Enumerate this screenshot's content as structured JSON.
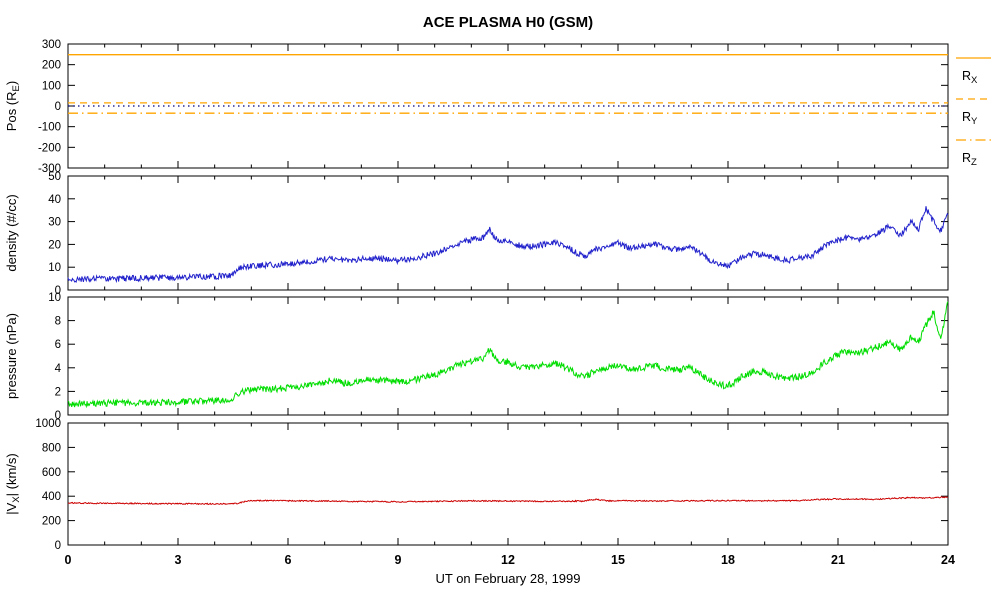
{
  "chart_data": {
    "type": "line",
    "title": "ACE PLASMA H0 (GSM)",
    "xlabel": "UT on February 28, 1999",
    "x_range": [
      0,
      24
    ],
    "x_ticks": [
      0,
      3,
      6,
      9,
      12,
      15,
      18,
      21,
      24
    ],
    "grid": false,
    "legend_position": "right-of-top-panel",
    "panels": [
      {
        "id": "position",
        "ylabel_parts": [
          {
            "t": "Pos (R"
          },
          {
            "t": "E",
            "sub": true
          },
          {
            "t": ")"
          }
        ],
        "ylim": [
          -300,
          300
        ],
        "yticks": [
          -300,
          -200,
          -100,
          0,
          100,
          200,
          300
        ],
        "series": [
          {
            "name": "R_X",
            "color": "#FFA500",
            "style": "solid",
            "width": 1.3,
            "noise": 0,
            "x": [
              0,
              24
            ],
            "y": [
              248,
              248
            ]
          },
          {
            "name": "R_Y",
            "color": "#FFA500",
            "style": "dash",
            "width": 1.3,
            "noise": 0,
            "x": [
              0,
              24
            ],
            "y": [
              15,
              15
            ]
          },
          {
            "name": "R_Z",
            "color": "#FFA500",
            "style": "dashdot",
            "width": 1.3,
            "noise": 0,
            "x": [
              0,
              24
            ],
            "y": [
              -35,
              -35
            ]
          },
          {
            "name": "zero-reference",
            "color": "#000080",
            "style": "dot",
            "width": 1.2,
            "noise": 0,
            "x": [
              0,
              24
            ],
            "y": [
              0,
              0
            ]
          }
        ],
        "legend": [
          {
            "main": "R",
            "sub": "X",
            "style": "solid"
          },
          {
            "main": "R",
            "sub": "Y",
            "style": "dash"
          },
          {
            "main": "R",
            "sub": "Z",
            "style": "dashdot"
          }
        ]
      },
      {
        "id": "density",
        "ylabel_parts": [
          {
            "t": "density (#/cc)"
          }
        ],
        "ylim": [
          0,
          50
        ],
        "yticks": [
          0,
          10,
          20,
          30,
          40,
          50
        ],
        "series": [
          {
            "name": "density",
            "color": "#2222CC",
            "style": "solid",
            "width": 1,
            "noise": 1.3,
            "x": [
              0,
              0.5,
              1,
              1.5,
              2,
              2.5,
              3,
              3.5,
              4,
              4.4,
              4.7,
              4.9,
              5.2,
              5.6,
              6,
              6.4,
              6.8,
              7,
              7.2,
              7.5,
              7.8,
              8,
              8.3,
              8.6,
              9,
              9.3,
              9.6,
              10,
              10.3,
              10.6,
              10.9,
              11.1,
              11.35,
              11.5,
              11.7,
              12,
              12.2,
              12.5,
              12.8,
              13,
              13.3,
              13.6,
              13.9,
              14.1,
              14.4,
              14.7,
              15,
              15.3,
              15.6,
              16,
              16.3,
              16.6,
              17,
              17.3,
              17.6,
              17.9,
              18.1,
              18.4,
              18.7,
              19,
              19.3,
              19.6,
              20,
              20.3,
              20.6,
              20.9,
              21.2,
              21.5,
              21.8,
              22.1,
              22.4,
              22.7,
              23,
              23.2,
              23.4,
              23.6,
              23.8,
              24
            ],
            "y": [
              4.5,
              4.8,
              5,
              5,
              5.2,
              5.3,
              5.5,
              5.8,
              6,
              6.2,
              9.5,
              10.5,
              10.8,
              11,
              11.5,
              12,
              13,
              13.5,
              14,
              12.8,
              13.2,
              13.5,
              14,
              13.8,
              13,
              13.5,
              14.5,
              16,
              18,
              20,
              21.5,
              22.5,
              23,
              26.5,
              22,
              21.5,
              20,
              19,
              19.5,
              20,
              21,
              19,
              16,
              15,
              18,
              19,
              20.5,
              18.5,
              19,
              20,
              18.5,
              18,
              19,
              15.5,
              12,
              10.5,
              11,
              14.5,
              16,
              15.5,
              14,
              13,
              14,
              15,
              19,
              21,
              23,
              22,
              23.5,
              25,
              28,
              24,
              30,
              27,
              36,
              30,
              26,
              33
            ]
          }
        ]
      },
      {
        "id": "pressure",
        "ylabel_parts": [
          {
            "t": "pressure (nPa)"
          }
        ],
        "ylim": [
          0,
          10
        ],
        "yticks": [
          0,
          2,
          4,
          6,
          8,
          10
        ],
        "series": [
          {
            "name": "pressure",
            "color": "#00DD00",
            "style": "solid",
            "width": 1,
            "noise": 0.28,
            "x": [
              0,
              0.5,
              1,
              1.5,
              2,
              2.5,
              3,
              3.5,
              4,
              4.4,
              4.7,
              4.9,
              5.2,
              5.6,
              6,
              6.4,
              6.8,
              7,
              7.2,
              7.5,
              7.8,
              8,
              8.3,
              8.6,
              9,
              9.3,
              9.6,
              10,
              10.3,
              10.6,
              10.9,
              11.1,
              11.35,
              11.5,
              11.7,
              12,
              12.2,
              12.5,
              12.8,
              13,
              13.3,
              13.6,
              13.9,
              14.1,
              14.4,
              14.7,
              15,
              15.3,
              15.6,
              16,
              16.3,
              16.6,
              17,
              17.3,
              17.6,
              17.9,
              18.1,
              18.4,
              18.7,
              19,
              19.3,
              19.6,
              20,
              20.3,
              20.6,
              20.9,
              21.2,
              21.5,
              21.8,
              22.1,
              22.4,
              22.7,
              23,
              23.2,
              23.4,
              23.6,
              23.8,
              24
            ],
            "y": [
              0.9,
              0.95,
              1,
              1,
              1.05,
              1.05,
              1.1,
              1.15,
              1.2,
              1.25,
              1.9,
              2.1,
              2.15,
              2.2,
              2.3,
              2.4,
              2.6,
              2.8,
              3,
              2.7,
              2.8,
              2.9,
              3,
              2.9,
              2.8,
              2.9,
              3.1,
              3.4,
              3.8,
              4.2,
              4.5,
              4.7,
              4.8,
              5.6,
              4.6,
              4.5,
              4.2,
              4,
              4.1,
              4.2,
              4.4,
              4,
              3.4,
              3.2,
              3.8,
              4,
              4.3,
              3.9,
              4,
              4.2,
              3.9,
              3.8,
              4,
              3.3,
              2.8,
              2.5,
              2.6,
              3.3,
              3.7,
              3.6,
              3.3,
              3.1,
              3.3,
              3.5,
              4.4,
              5,
              5.4,
              5.2,
              5.5,
              5.8,
              6.2,
              5.6,
              6.6,
              6.2,
              7.6,
              8.8,
              6.4,
              9.6
            ]
          }
        ]
      },
      {
        "id": "velocity",
        "ylabel_parts": [
          {
            "t": "|V"
          },
          {
            "t": "X",
            "sub": true
          },
          {
            "t": "| (km/s)"
          }
        ],
        "ylim": [
          0,
          1000
        ],
        "yticks": [
          0,
          200,
          400,
          600,
          800,
          1000
        ],
        "show_x_labels": true,
        "series": [
          {
            "name": "vx-speed",
            "color": "#CC0000",
            "style": "solid",
            "width": 1,
            "noise": 5,
            "x": [
              0,
              1,
              2,
              3,
              4,
              4.6,
              4.9,
              5.5,
              6,
              7,
              8,
              9,
              10,
              11,
              12,
              13,
              14,
              14.4,
              14.7,
              15,
              16,
              17,
              18,
              19,
              20,
              20.4,
              20.8,
              21.5,
              22,
              22.5,
              23,
              23.5,
              24
            ],
            "y": [
              345,
              342,
              340,
              338,
              337,
              340,
              362,
              365,
              362,
              360,
              357,
              354,
              358,
              362,
              360,
              357,
              360,
              374,
              362,
              364,
              360,
              362,
              364,
              362,
              364,
              372,
              376,
              378,
              374,
              382,
              388,
              386,
              394
            ]
          }
        ]
      }
    ]
  }
}
